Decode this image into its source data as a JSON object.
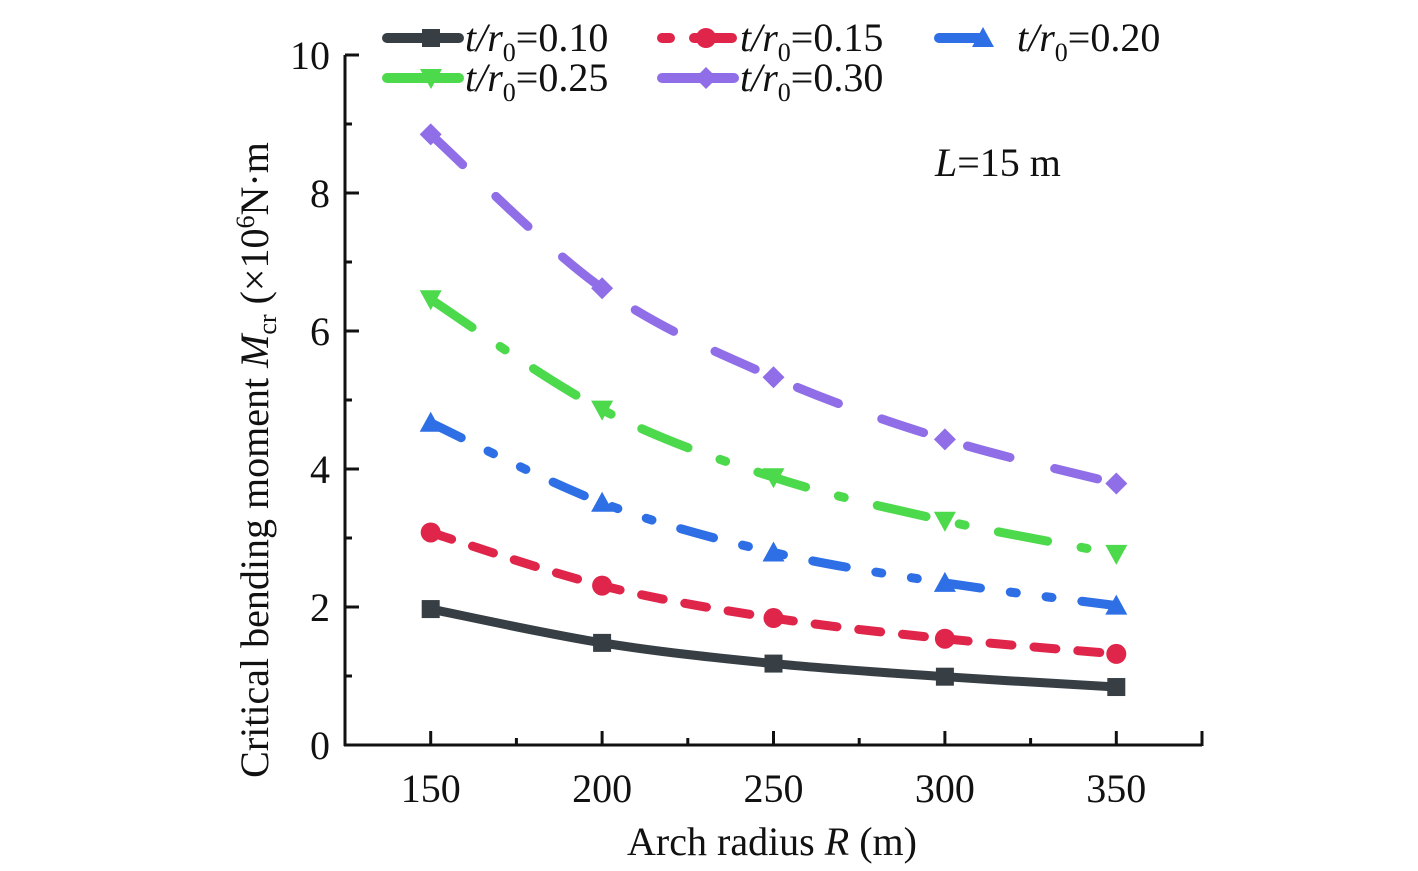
{
  "chart_data": {
    "type": "line",
    "title": "",
    "xlabel": "Arch radius R (m)",
    "xlabel_parts": {
      "pre": "Arch radius ",
      "var": "R",
      "post": " (m)"
    },
    "ylabel": "Critical bending moment Mcr (×10⁶N·m)",
    "ylabel_parts": {
      "pre": "Critical bending moment ",
      "var": "M",
      "sub": "cr",
      "mid": " (×10",
      "sup": "6",
      "post": "N·m"
    },
    "x": [
      150,
      200,
      250,
      300,
      350
    ],
    "xlim": [
      125,
      375
    ],
    "ylim": [
      0,
      10
    ],
    "xticks": [
      "150",
      "200",
      "250",
      "300",
      "350"
    ],
    "yticks": [
      "0",
      "2",
      "4",
      "6",
      "8",
      "10"
    ],
    "grid": false,
    "legend_position": "top",
    "annotation": {
      "var": "L",
      "text": "=15 m"
    },
    "series": [
      {
        "name": "t/r0=0.10",
        "label_var": "t/r",
        "label_sub": "0",
        "label_val": "=0.10",
        "color": "#373f45",
        "marker": "square",
        "dash": "solid",
        "values": [
          1.97,
          1.48,
          1.18,
          0.99,
          0.84
        ]
      },
      {
        "name": "t/r0=0.15",
        "label_var": "t/r",
        "label_sub": "0",
        "label_val": "=0.15",
        "color": "#e0254a",
        "marker": "circle",
        "dash": "dash",
        "values": [
          3.08,
          2.31,
          1.84,
          1.54,
          1.32
        ]
      },
      {
        "name": "t/r0=0.20",
        "label_var": "t/r",
        "label_sub": "0",
        "label_val": "=0.20",
        "color": "#2e6fe6",
        "marker": "triangle-up",
        "dash": "dashdotdot",
        "values": [
          4.67,
          3.51,
          2.79,
          2.35,
          2.02
        ]
      },
      {
        "name": "t/r0=0.25",
        "label_var": "t/r",
        "label_sub": "0",
        "label_val": "=0.25",
        "color": "#4cd94c",
        "marker": "triangle-down",
        "dash": "dashdot",
        "values": [
          6.46,
          4.86,
          3.88,
          3.25,
          2.77
        ]
      },
      {
        "name": "t/r0=0.30",
        "label_var": "t/r",
        "label_sub": "0",
        "label_val": "=0.30",
        "color": "#8f6ee8",
        "marker": "diamond",
        "dash": "longdash",
        "values": [
          8.85,
          6.62,
          5.33,
          4.43,
          3.79
        ]
      }
    ]
  }
}
